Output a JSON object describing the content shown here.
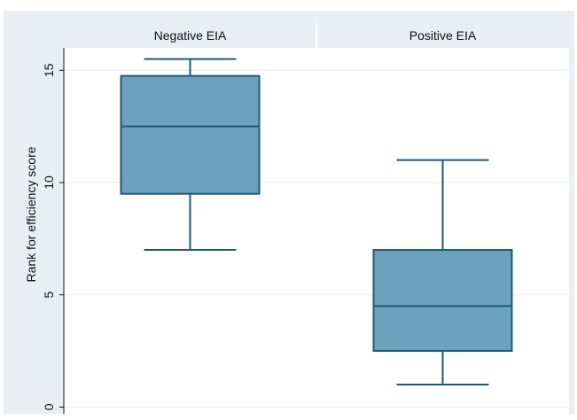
{
  "chart_data": {
    "type": "box",
    "ylabel": "Rank for efficiency score",
    "ylim": [
      -0.3,
      16.0
    ],
    "yticks": [
      0,
      5,
      10,
      15
    ],
    "grid": true,
    "panels": [
      {
        "label": "Negative EIA",
        "lower_whisker": 7,
        "q1": 9.5,
        "median": 12.5,
        "q3": 14.75,
        "upper_whisker": 15.5
      },
      {
        "label": "Positive EIA",
        "lower_whisker": 1,
        "q1": 2.5,
        "median": 4.5,
        "q3": 7,
        "upper_whisker": 11
      }
    ]
  },
  "colors": {
    "outer_background": "#e8eef2",
    "plot_background": "#ffffff",
    "box_fill": "#6aa3bb",
    "box_stroke": "#1f5a74",
    "grid": "#e8eef2"
  }
}
